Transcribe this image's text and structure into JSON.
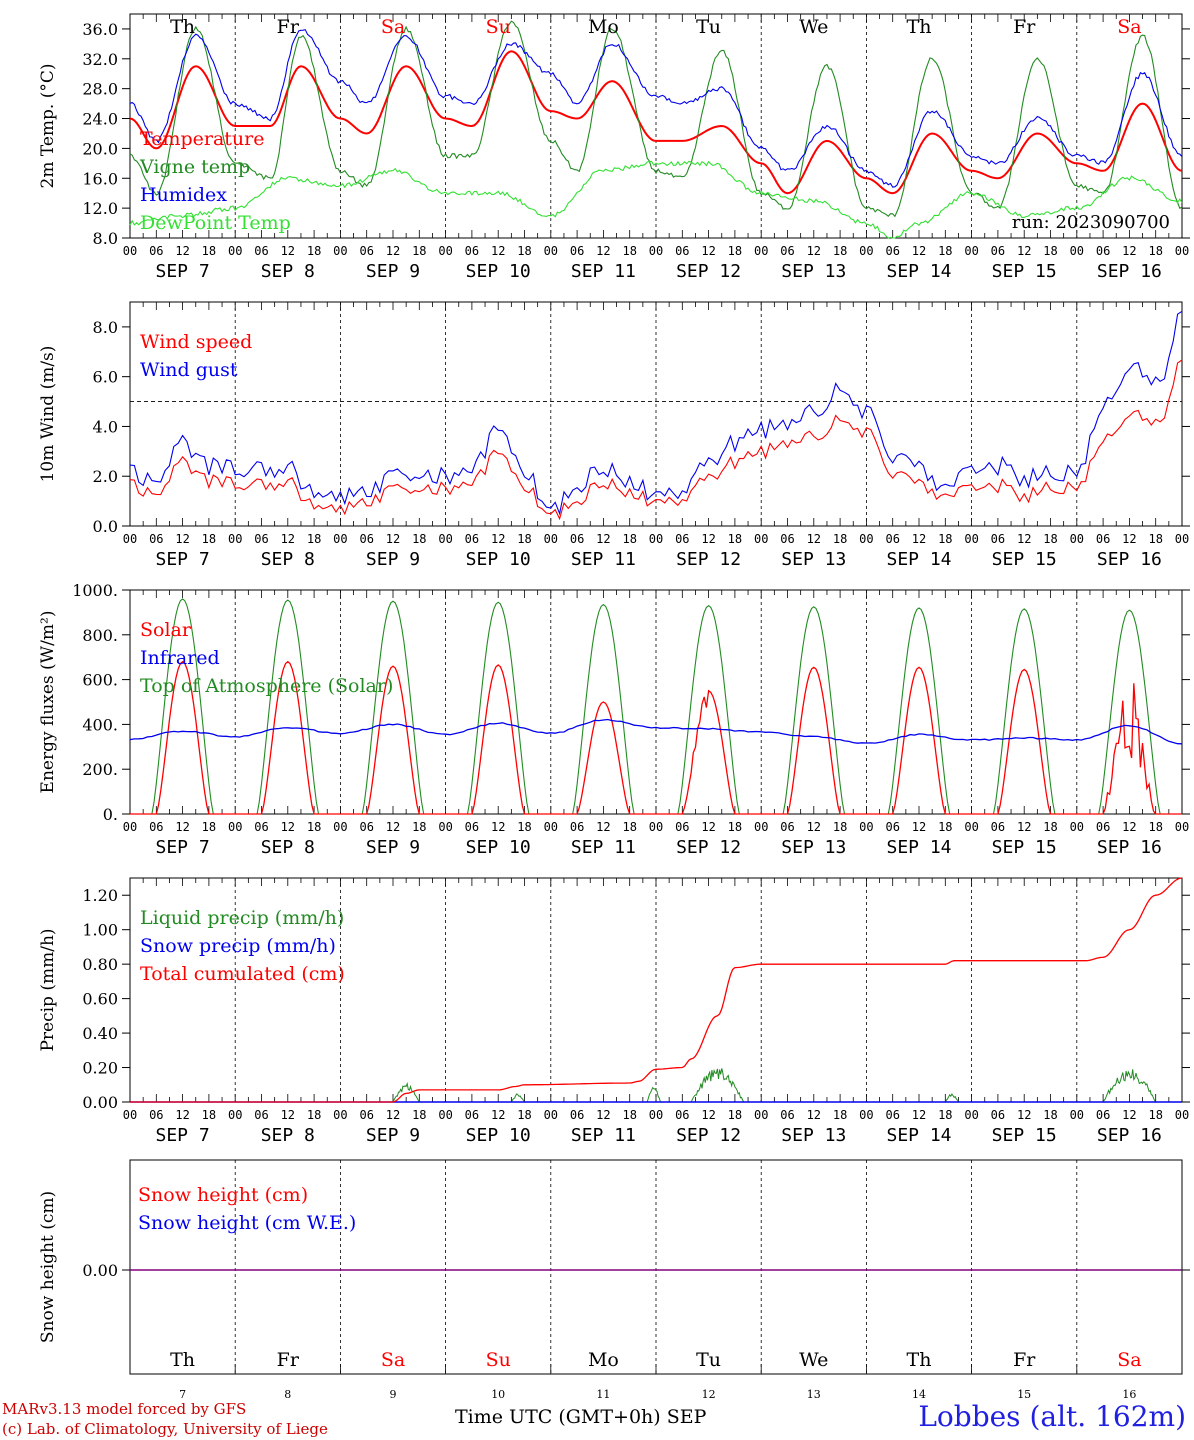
{
  "footer": {
    "model": "MARv3.13 model forced by GFS",
    "credit": "(c) Lab. of Climatology, University of Liege",
    "x_title": "Time UTC (GMT+0h) SEP",
    "station": "Lobbes (alt. 162m)"
  },
  "colors": {
    "red": "#ff0000",
    "green": "#228b22",
    "blue": "#0000ee",
    "light_green": "#33e033",
    "purple": "#800080"
  },
  "chart_data": [
    {
      "type": "line",
      "ylabel": "2m Temp. (°C)",
      "ylim": [
        8,
        38
      ],
      "yticks": [
        "8.0",
        "12.0",
        "16.0",
        "20.0",
        "24.0",
        "28.0",
        "32.0",
        "36.0"
      ],
      "ytick_values": [
        8,
        12,
        16,
        20,
        24,
        28,
        32,
        36
      ],
      "day_labels": [
        "Th",
        "Fr",
        "Sa",
        "Su",
        "Mo",
        "Tu",
        "We",
        "Th",
        "Fr",
        "Sa"
      ],
      "weekend_days": [
        2,
        3,
        9
      ],
      "annotation": "run: 2023090700",
      "series": [
        {
          "name": "Temperature",
          "color": "#ff0000",
          "x": [
            0,
            6,
            15,
            24,
            32,
            39,
            48,
            54,
            63,
            72,
            78,
            87,
            96,
            102,
            110,
            120,
            126,
            135,
            144,
            150,
            159,
            168,
            174,
            183,
            192,
            198,
            207,
            216,
            222,
            231,
            240
          ],
          "values": [
            24,
            20,
            31,
            23,
            23,
            31,
            24,
            22,
            31,
            24,
            23,
            33,
            25,
            24,
            29,
            21,
            21,
            23,
            18,
            14,
            21,
            16,
            14,
            22,
            17,
            16,
            22,
            18,
            17,
            26,
            17
          ]
        },
        {
          "name": "Vigne temp",
          "color": "#228b22",
          "x": [
            0,
            6,
            15,
            24,
            32,
            39,
            48,
            54,
            63,
            72,
            78,
            87,
            96,
            102,
            110,
            120,
            126,
            135,
            144,
            150,
            159,
            168,
            174,
            183,
            192,
            198,
            207,
            216,
            222,
            231,
            240
          ],
          "values": [
            19,
            14,
            36,
            18,
            16,
            35,
            17,
            15,
            36,
            19,
            19,
            37,
            21,
            17,
            36,
            17,
            16,
            33,
            14,
            12,
            31,
            12,
            11,
            32,
            14,
            12,
            32,
            15,
            14,
            35,
            12
          ]
        },
        {
          "name": "Humidex",
          "color": "#0000ee",
          "x": [
            0,
            6,
            15,
            24,
            32,
            39,
            48,
            54,
            63,
            72,
            78,
            87,
            96,
            102,
            110,
            120,
            126,
            135,
            144,
            150,
            159,
            168,
            174,
            183,
            192,
            198,
            207,
            216,
            222,
            231,
            240
          ],
          "values": [
            26,
            21,
            35,
            26,
            24,
            36,
            29,
            26,
            35,
            27,
            26,
            34,
            30,
            26,
            34,
            27,
            26,
            28,
            20,
            17,
            23,
            17,
            15,
            25,
            19,
            18,
            24,
            19,
            18,
            30,
            19
          ]
        },
        {
          "name": "DewPoint Temp",
          "color": "#33e033",
          "x": [
            0,
            12,
            24,
            36,
            48,
            60,
            72,
            84,
            96,
            108,
            120,
            132,
            144,
            156,
            168,
            174,
            180,
            192,
            204,
            216,
            228,
            240
          ],
          "values": [
            10,
            11,
            12,
            16,
            15,
            17,
            14,
            14,
            11,
            17,
            18,
            18,
            14,
            13,
            10,
            8,
            10,
            14,
            11,
            12,
            16,
            13
          ]
        }
      ]
    },
    {
      "type": "line",
      "ylabel": "10m Wind (m/s)",
      "ylim": [
        0,
        9
      ],
      "yticks": [
        "0.0",
        "2.0",
        "4.0",
        "6.0",
        "8.0"
      ],
      "ytick_values": [
        0,
        2,
        4,
        6,
        8
      ],
      "threshold": 5,
      "series": [
        {
          "name": "Wind speed",
          "color": "#ff0000",
          "x": [
            0,
            6,
            12,
            18,
            24,
            30,
            36,
            42,
            48,
            54,
            60,
            66,
            72,
            78,
            84,
            90,
            96,
            102,
            108,
            114,
            120,
            126,
            132,
            138,
            144,
            150,
            156,
            162,
            168,
            174,
            180,
            186,
            192,
            198,
            204,
            210,
            216,
            222,
            228,
            234,
            240
          ],
          "values": [
            1.6,
            1.2,
            2.6,
            1.8,
            1.7,
            1.6,
            1.8,
            0.8,
            0.7,
            0.9,
            1.6,
            1.3,
            1.5,
            1.9,
            2.8,
            1.6,
            0.4,
            1.1,
            1.8,
            1.2,
            1.0,
            0.9,
            1.9,
            2.6,
            3.0,
            3.4,
            3.6,
            4.2,
            3.7,
            2.2,
            1.8,
            1.0,
            1.5,
            1.6,
            1.2,
            1.6,
            1.5,
            3.5,
            4.5,
            4.0,
            6.5
          ]
        },
        {
          "name": "Wind gust",
          "color": "#0000ee",
          "x": [
            0,
            6,
            12,
            18,
            24,
            30,
            36,
            42,
            48,
            54,
            60,
            66,
            72,
            78,
            84,
            90,
            96,
            102,
            108,
            114,
            120,
            126,
            132,
            138,
            144,
            150,
            156,
            162,
            168,
            174,
            180,
            186,
            192,
            198,
            204,
            210,
            216,
            222,
            228,
            234,
            240
          ],
          "values": [
            2.1,
            1.7,
            3.4,
            2.4,
            2.3,
            2.2,
            2.4,
            1.3,
            1.2,
            1.3,
            2.2,
            1.8,
            2.0,
            2.5,
            3.7,
            2.2,
            0.6,
            1.7,
            2.4,
            1.6,
            1.3,
            1.2,
            2.5,
            3.4,
            3.9,
            4.2,
            4.6,
            5.4,
            4.5,
            2.9,
            2.5,
            1.3,
            2.2,
            2.4,
            1.9,
            2.2,
            2.1,
            4.9,
            6.4,
            5.6,
            8.4
          ]
        }
      ]
    },
    {
      "type": "line",
      "ylabel": "Energy fluxes (W/m²)",
      "ylim": [
        0,
        1000
      ],
      "yticks": [
        "0.",
        "200.",
        "400.",
        "600.",
        "800.",
        "1000."
      ],
      "ytick_values": [
        0,
        200,
        400,
        600,
        800,
        1000
      ],
      "daily_peaks": {
        "solar": [
          680,
          680,
          660,
          665,
          500,
          550,
          655,
          655,
          645,
          640
        ],
        "toa": [
          960,
          955,
          950,
          945,
          935,
          930,
          925,
          920,
          915,
          910
        ]
      },
      "series": [
        {
          "name": "Solar",
          "color": "#ff0000"
        },
        {
          "name": "Infrared",
          "color": "#0000ee",
          "x": [
            0,
            12,
            24,
            36,
            48,
            60,
            72,
            84,
            96,
            108,
            120,
            132,
            144,
            156,
            168,
            180,
            192,
            204,
            216,
            228,
            240
          ],
          "values": [
            335,
            370,
            345,
            385,
            360,
            400,
            355,
            405,
            360,
            420,
            385,
            380,
            365,
            345,
            315,
            355,
            330,
            340,
            330,
            395,
            315
          ]
        },
        {
          "name": "Top of Atmosphere (Solar)",
          "color": "#228b22"
        }
      ]
    },
    {
      "type": "line",
      "ylabel": "Precip (mm/h)",
      "ylim": [
        0,
        1.3
      ],
      "yticks": [
        "0.00",
        "0.20",
        "0.40",
        "0.60",
        "0.80",
        "1.00",
        "1.20"
      ],
      "ytick_values": [
        0,
        0.2,
        0.4,
        0.6,
        0.8,
        1.0,
        1.2
      ],
      "series": [
        {
          "name": "Liquid precip (mm/h)",
          "color": "#228b22",
          "bursts": [
            [
              60,
              66,
              0.11
            ],
            [
              87,
              90,
              0.05
            ],
            [
              118,
              121,
              0.09
            ],
            [
              128,
              140,
              0.21
            ],
            [
              186,
              189,
              0.05
            ],
            [
              222,
              234,
              0.21
            ]
          ]
        },
        {
          "name": "Snow precip (mm/h)",
          "color": "#0000ee",
          "values": [
            0,
            0
          ]
        },
        {
          "name": "Total cumulated (cm)",
          "color": "#ff0000",
          "x": [
            0,
            60,
            63,
            66,
            84,
            88,
            90,
            114,
            116,
            120,
            126,
            128,
            134,
            138,
            144,
            168,
            186,
            188,
            210,
            218,
            222,
            228,
            234,
            240
          ],
          "values": [
            0,
            0,
            0.05,
            0.07,
            0.07,
            0.09,
            0.1,
            0.11,
            0.12,
            0.19,
            0.2,
            0.25,
            0.5,
            0.78,
            0.8,
            0.8,
            0.8,
            0.82,
            0.82,
            0.82,
            0.84,
            1.0,
            1.2,
            1.3
          ]
        }
      ]
    },
    {
      "type": "line",
      "ylabel": "Snow height (cm)",
      "yticks": [
        "0.00"
      ],
      "ytick_values": [
        0
      ],
      "series": [
        {
          "name": "Snow height (cm)",
          "color": "#ff0000",
          "values": [
            0,
            0
          ]
        },
        {
          "name": "Snow height (cm W.E.)",
          "color": "#0000ee",
          "values": [
            0,
            0
          ]
        }
      ],
      "day_labels": [
        "Th",
        "Fr",
        "Sa",
        "Su",
        "Mo",
        "Tu",
        "We",
        "Th",
        "Fr",
        "Sa"
      ],
      "day_numbers": [
        "7",
        "8",
        "9",
        "10",
        "11",
        "12",
        "13",
        "14",
        "15",
        "16"
      ]
    }
  ],
  "x_axis": {
    "hour_labels": [
      "00",
      "06",
      "12",
      "18"
    ],
    "final_label": "00",
    "date_labels": [
      "SEP  7",
      "SEP  8",
      "SEP  9",
      "SEP 10",
      "SEP 11",
      "SEP 12",
      "SEP 13",
      "SEP 14",
      "SEP 15",
      "SEP 16"
    ]
  }
}
